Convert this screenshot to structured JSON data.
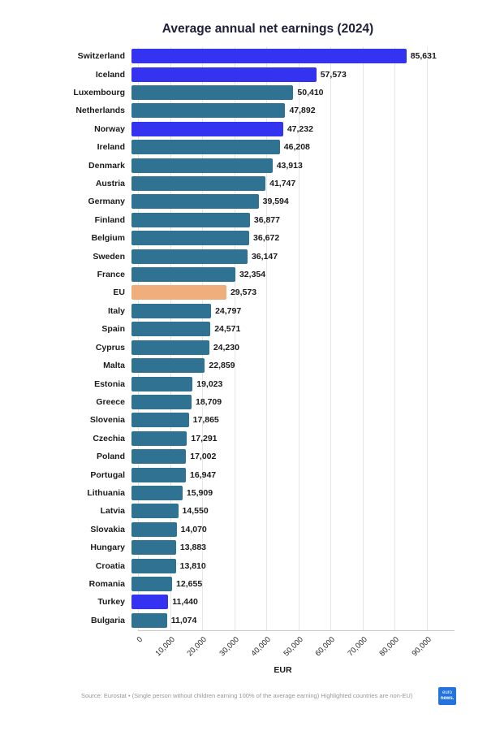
{
  "title": "Average annual net earnings (2024)",
  "colors": {
    "eu_member": "#2F7292",
    "non_eu": "#3333F0",
    "eu_aggregate": "#F0AE7C",
    "grid": "#e7e7e7",
    "axis_line": "#c9c9c9",
    "text": "#1a1a1a",
    "logo_blue": "#2273dd"
  },
  "chart_data": {
    "type": "bar",
    "orientation": "horizontal",
    "title": "Average annual net earnings (2024)",
    "xlabel": "EUR",
    "xlim": [
      0,
      90000
    ],
    "grid": "vertical",
    "legend": "none",
    "xtick_labels": [
      "0",
      "10,000",
      "20,000",
      "30,000",
      "40,000",
      "50,000",
      "60,000",
      "70,000",
      "80,000",
      "90,000"
    ],
    "categories": [
      "Switzerland",
      "Iceland",
      "Luxembourg",
      "Netherlands",
      "Norway",
      "Ireland",
      "Denmark",
      "Austria",
      "Germany",
      "Finland",
      "Belgium",
      "Sweden",
      "France",
      "EU",
      "Italy",
      "Spain",
      "Cyprus",
      "Malta",
      "Estonia",
      "Greece",
      "Slovenia",
      "Czechia",
      "Poland",
      "Portugal",
      "Lithuania",
      "Latvia",
      "Slovakia",
      "Hungary",
      "Croatia",
      "Romania",
      "Turkey",
      "Bulgaria"
    ],
    "values": [
      85631,
      57573,
      50410,
      47892,
      47232,
      46208,
      43913,
      41747,
      39594,
      36877,
      36672,
      36147,
      32354,
      29573,
      24797,
      24571,
      24230,
      22859,
      19023,
      18709,
      17865,
      17291,
      17002,
      16947,
      15909,
      14550,
      14070,
      13883,
      13810,
      12655,
      11440,
      11074
    ],
    "value_labels": [
      "85,631",
      "57,573",
      "50,410",
      "47,892",
      "47,232",
      "46,208",
      "43,913",
      "41,747",
      "39,594",
      "36,877",
      "36,672",
      "36,147",
      "32,354",
      "29,573",
      "24,797",
      "24,571",
      "24,230",
      "22,859",
      "19,023",
      "18,709",
      "17,865",
      "17,291",
      "17,002",
      "16,947",
      "15,909",
      "14,550",
      "14,070",
      "13,883",
      "13,810",
      "12,655",
      "11,440",
      "11,074"
    ],
    "bar_color_keys": [
      "non_eu",
      "non_eu",
      "eu_member",
      "eu_member",
      "non_eu",
      "eu_member",
      "eu_member",
      "eu_member",
      "eu_member",
      "eu_member",
      "eu_member",
      "eu_member",
      "eu_member",
      "eu_aggregate",
      "eu_member",
      "eu_member",
      "eu_member",
      "eu_member",
      "eu_member",
      "eu_member",
      "eu_member",
      "eu_member",
      "eu_member",
      "eu_member",
      "eu_member",
      "eu_member",
      "eu_member",
      "eu_member",
      "eu_member",
      "eu_member",
      "non_eu",
      "eu_member"
    ]
  },
  "footer": {
    "source_text": "Source: Eurostat • (Single person without children earning 100% of the average earning) Highlighted countries are non-EU)",
    "logo_line1": "euro",
    "logo_line2": "news."
  }
}
